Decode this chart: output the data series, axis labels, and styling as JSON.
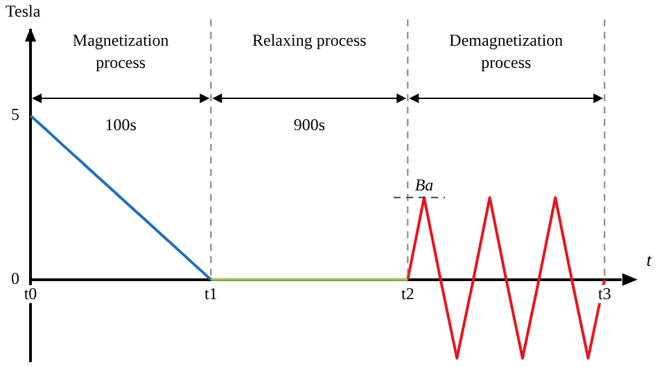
{
  "chart_data": {
    "type": "line",
    "xlabel": "t",
    "ylabel": "Tesla",
    "categories": [
      "t0",
      null,
      null,
      null,
      null,
      null,
      null,
      null,
      null,
      null,
      null,
      "t1",
      null,
      null,
      null,
      null,
      null,
      null,
      null,
      null,
      null,
      null,
      null,
      "t2",
      null,
      null,
      null,
      null,
      null,
      null,
      null,
      null,
      null,
      null,
      null,
      "t3",
      null
    ],
    "ylim": [
      -2.5,
      7.6
    ],
    "yticks": [
      0,
      5
    ],
    "series": [
      {
        "color": "#1f6fc0",
        "values": [
          5,
          4.55,
          4.09,
          3.64,
          3.18,
          2.73,
          2.27,
          1.82,
          1.36,
          0.91,
          0.45,
          0,
          null,
          null,
          null,
          null,
          null,
          null,
          null,
          null,
          null,
          null,
          null,
          null,
          null,
          null,
          null,
          null,
          null,
          null,
          null,
          null,
          null,
          null,
          null,
          null,
          null
        ]
      },
      {
        "color": "#9bbb59",
        "values": [
          null,
          null,
          null,
          null,
          null,
          null,
          null,
          null,
          null,
          null,
          null,
          0,
          0,
          0,
          0,
          0,
          0,
          0,
          0,
          0,
          0,
          0,
          0,
          0,
          null,
          null,
          null,
          null,
          null,
          null,
          null,
          null,
          null,
          null,
          null,
          null,
          null
        ]
      },
      {
        "color": "#e8141c",
        "values": [
          null,
          null,
          null,
          null,
          null,
          null,
          null,
          null,
          null,
          null,
          null,
          null,
          null,
          null,
          null,
          null,
          null,
          null,
          null,
          null,
          null,
          null,
          null,
          0,
          2.5,
          0,
          -2.4,
          0,
          2.5,
          0,
          -2.4,
          0,
          2.5,
          0,
          -2.4,
          0,
          null
        ]
      }
    ],
    "ref_lines": [
      {
        "axis": "x",
        "value": "t1",
        "color": "#808080",
        "line_style": "dashed"
      },
      {
        "axis": "x",
        "value": "t2",
        "color": "#808080",
        "line_style": "dashed"
      },
      {
        "axis": "x",
        "value": "t3",
        "color": "#808080",
        "line_style": "dashed"
      }
    ],
    "annotations": [
      "Magnetization process",
      "Relaxing process",
      "Demagnetization process",
      "100s",
      "900s",
      {
        "text": "Ba",
        "y": 2.5
      }
    ],
    "grid": false,
    "legend": false,
    "marker": "none",
    "line_style": "solid"
  }
}
